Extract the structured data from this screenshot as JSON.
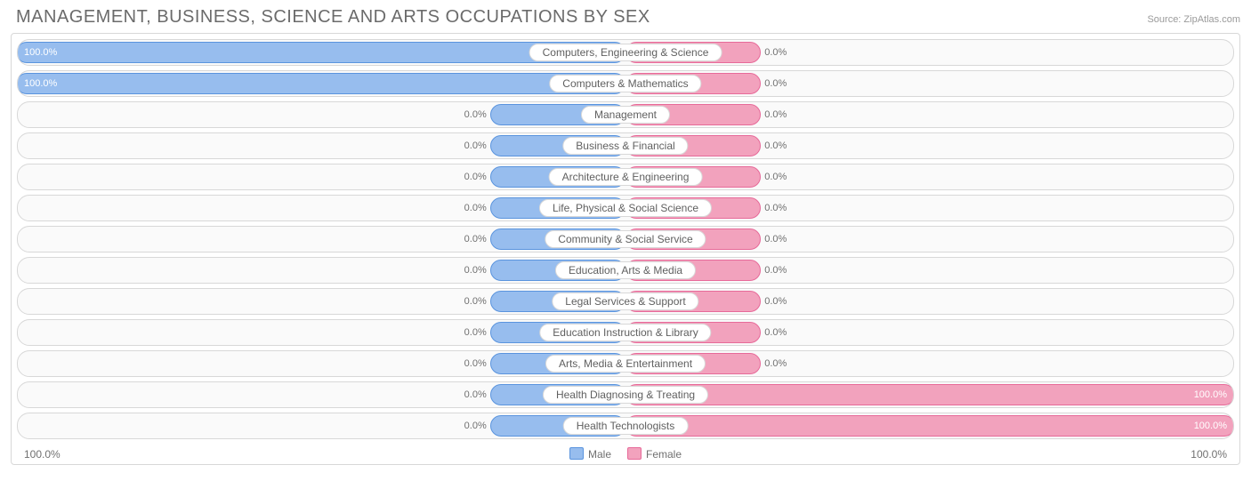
{
  "header": {
    "title": "MANAGEMENT, BUSINESS, SCIENCE AND ARTS OCCUPATIONS BY SEX",
    "source_prefix": "Source: ",
    "source_name": "ZipAtlas.com"
  },
  "chart": {
    "type": "diverging-bar",
    "male_color": "#97bdee",
    "male_border": "#5a94de",
    "female_color": "#f2a2bd",
    "female_border": "#e76a99",
    "track_bg": "#fafafa",
    "track_border": "#d8d8d8",
    "neutral_bar_pct": 22,
    "axis": {
      "left_label": "100.0%",
      "right_label": "100.0%",
      "legend_male": "Male",
      "legend_female": "Female"
    },
    "rows": [
      {
        "label": "Computers, Engineering & Science",
        "male": 100.0,
        "female": 0.0
      },
      {
        "label": "Computers & Mathematics",
        "male": 100.0,
        "female": 0.0
      },
      {
        "label": "Management",
        "male": 0.0,
        "female": 0.0
      },
      {
        "label": "Business & Financial",
        "male": 0.0,
        "female": 0.0
      },
      {
        "label": "Architecture & Engineering",
        "male": 0.0,
        "female": 0.0
      },
      {
        "label": "Life, Physical & Social Science",
        "male": 0.0,
        "female": 0.0
      },
      {
        "label": "Community & Social Service",
        "male": 0.0,
        "female": 0.0
      },
      {
        "label": "Education, Arts & Media",
        "male": 0.0,
        "female": 0.0
      },
      {
        "label": "Legal Services & Support",
        "male": 0.0,
        "female": 0.0
      },
      {
        "label": "Education Instruction & Library",
        "male": 0.0,
        "female": 0.0
      },
      {
        "label": "Arts, Media & Entertainment",
        "male": 0.0,
        "female": 0.0
      },
      {
        "label": "Health Diagnosing & Treating",
        "male": 0.0,
        "female": 100.0
      },
      {
        "label": "Health Technologists",
        "male": 0.0,
        "female": 100.0
      }
    ]
  }
}
